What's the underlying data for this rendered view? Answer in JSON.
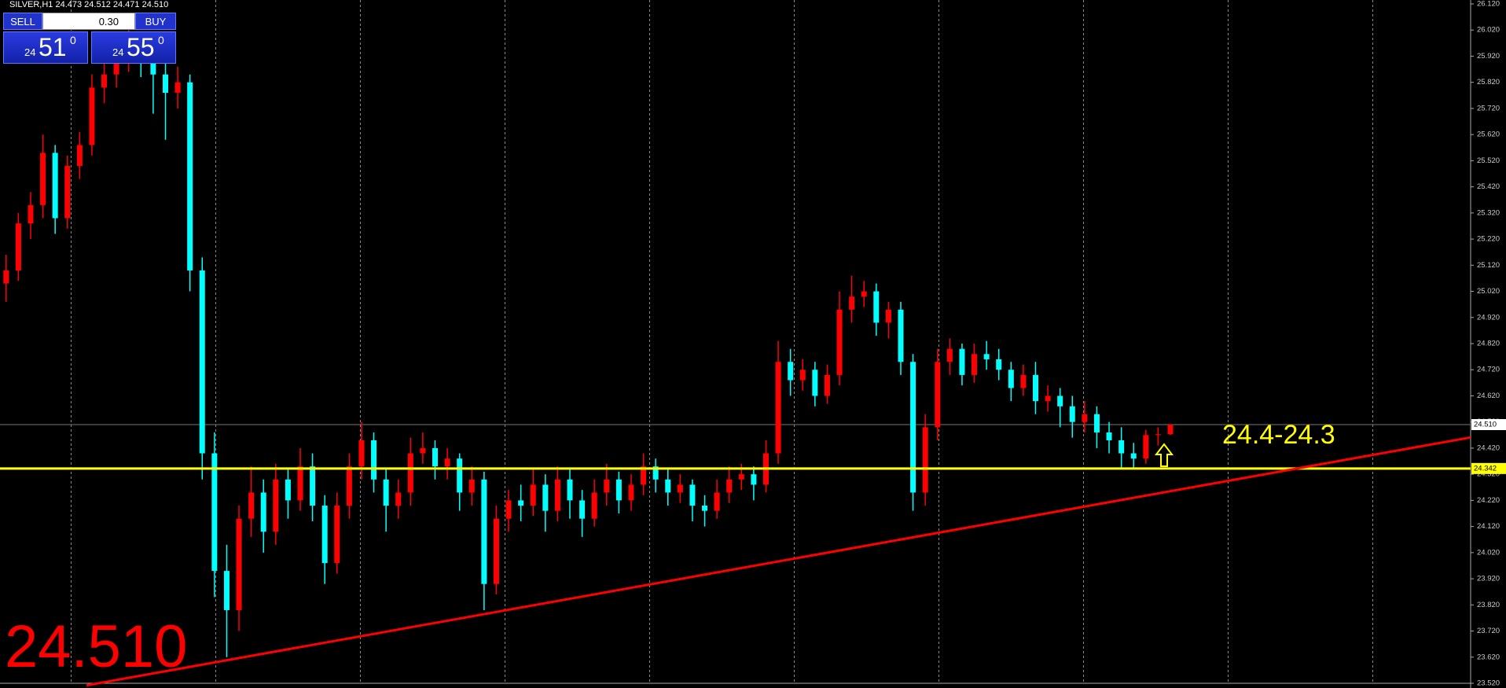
{
  "chart_data": {
    "type": "candlestick",
    "header": "SILVER,H1  24.473 24.512 24.471 24.510",
    "up_color": "#ff0000",
    "down_color": "#00ffff",
    "ylim": [
      23.52,
      26.12
    ],
    "yticks": [
      {
        "value": 26.12,
        "label": "26.120"
      },
      {
        "value": 26.02,
        "label": "26.020"
      },
      {
        "value": 25.92,
        "label": "25.920"
      },
      {
        "value": 25.82,
        "label": "25.820"
      },
      {
        "value": 25.72,
        "label": "25.720"
      },
      {
        "value": 25.62,
        "label": "25.620"
      },
      {
        "value": 25.52,
        "label": "25.520"
      },
      {
        "value": 25.42,
        "label": "25.420"
      },
      {
        "value": 25.32,
        "label": "25.320"
      },
      {
        "value": 25.22,
        "label": "25.220"
      },
      {
        "value": 25.12,
        "label": "25.120"
      },
      {
        "value": 25.02,
        "label": "25.020"
      },
      {
        "value": 24.92,
        "label": "24.920"
      },
      {
        "value": 24.82,
        "label": "24.820"
      },
      {
        "value": 24.72,
        "label": "24.720"
      },
      {
        "value": 24.62,
        "label": "24.620"
      },
      {
        "value": 24.52,
        "label": "24.520"
      },
      {
        "value": 24.42,
        "label": "24.420"
      },
      {
        "value": 24.32,
        "label": "24.320"
      },
      {
        "value": 24.22,
        "label": "24.220"
      },
      {
        "value": 24.12,
        "label": "24.120"
      },
      {
        "value": 24.02,
        "label": "24.020"
      },
      {
        "value": 23.92,
        "label": "23.920"
      },
      {
        "value": 23.82,
        "label": "23.820"
      },
      {
        "value": 23.72,
        "label": "23.720"
      },
      {
        "value": 23.62,
        "label": "23.620"
      },
      {
        "value": 23.52,
        "label": "23.520"
      }
    ],
    "ohlc": [
      [
        25.05,
        25.16,
        24.98,
        25.1
      ],
      [
        25.1,
        25.32,
        25.06,
        25.28
      ],
      [
        25.28,
        25.4,
        25.22,
        25.35
      ],
      [
        25.35,
        25.62,
        25.3,
        25.55
      ],
      [
        25.55,
        25.58,
        25.24,
        25.3
      ],
      [
        25.3,
        25.54,
        25.26,
        25.5
      ],
      [
        25.5,
        25.63,
        25.45,
        25.58
      ],
      [
        25.58,
        25.85,
        25.54,
        25.8
      ],
      [
        25.8,
        25.92,
        25.74,
        25.85
      ],
      [
        25.85,
        26.0,
        25.8,
        25.92
      ],
      [
        25.92,
        26.02,
        25.86,
        25.95
      ],
      [
        25.95,
        25.99,
        25.84,
        25.9
      ],
      [
        25.9,
        25.96,
        25.7,
        25.85
      ],
      [
        25.85,
        25.9,
        25.6,
        25.78
      ],
      [
        25.78,
        25.88,
        25.72,
        25.82
      ],
      [
        25.82,
        25.85,
        25.02,
        25.1
      ],
      [
        25.1,
        25.15,
        24.3,
        24.4
      ],
      [
        24.4,
        24.48,
        23.85,
        23.95
      ],
      [
        23.95,
        24.05,
        23.62,
        23.8
      ],
      [
        23.8,
        24.2,
        23.72,
        24.15
      ],
      [
        24.15,
        24.35,
        24.08,
        24.25
      ],
      [
        24.25,
        24.3,
        24.02,
        24.1
      ],
      [
        24.1,
        24.36,
        24.05,
        24.3
      ],
      [
        24.3,
        24.34,
        24.15,
        24.22
      ],
      [
        24.22,
        24.42,
        24.18,
        24.35
      ],
      [
        24.35,
        24.4,
        24.14,
        24.2
      ],
      [
        24.2,
        24.24,
        23.9,
        23.98
      ],
      [
        23.98,
        24.25,
        23.94,
        24.2
      ],
      [
        24.2,
        24.4,
        24.15,
        24.35
      ],
      [
        24.35,
        24.52,
        24.3,
        24.45
      ],
      [
        24.45,
        24.48,
        24.25,
        24.3
      ],
      [
        24.3,
        24.34,
        24.1,
        24.2
      ],
      [
        24.2,
        24.3,
        24.15,
        24.25
      ],
      [
        24.25,
        24.46,
        24.2,
        24.4
      ],
      [
        24.4,
        24.48,
        24.36,
        24.42
      ],
      [
        24.42,
        24.45,
        24.3,
        24.35
      ],
      [
        24.35,
        24.42,
        24.3,
        24.38
      ],
      [
        24.38,
        24.4,
        24.18,
        24.25
      ],
      [
        24.25,
        24.35,
        24.2,
        24.3
      ],
      [
        24.3,
        24.33,
        23.8,
        23.9
      ],
      [
        23.9,
        24.2,
        23.86,
        24.15
      ],
      [
        24.15,
        24.26,
        24.1,
        24.22
      ],
      [
        24.22,
        24.28,
        24.14,
        24.2
      ],
      [
        24.2,
        24.34,
        24.16,
        24.28
      ],
      [
        24.28,
        24.32,
        24.1,
        24.18
      ],
      [
        24.18,
        24.35,
        24.14,
        24.3
      ],
      [
        24.3,
        24.34,
        24.15,
        24.22
      ],
      [
        24.22,
        24.26,
        24.08,
        24.15
      ],
      [
        24.15,
        24.3,
        24.12,
        24.25
      ],
      [
        24.25,
        24.36,
        24.2,
        24.3
      ],
      [
        24.3,
        24.33,
        24.17,
        24.22
      ],
      [
        24.22,
        24.32,
        24.18,
        24.28
      ],
      [
        24.28,
        24.4,
        24.24,
        24.35
      ],
      [
        24.35,
        24.38,
        24.25,
        24.3
      ],
      [
        24.3,
        24.34,
        24.2,
        24.25
      ],
      [
        24.25,
        24.32,
        24.21,
        24.28
      ],
      [
        24.28,
        24.3,
        24.14,
        24.2
      ],
      [
        24.2,
        24.24,
        24.12,
        24.18
      ],
      [
        24.18,
        24.3,
        24.15,
        24.25
      ],
      [
        24.25,
        24.35,
        24.21,
        24.3
      ],
      [
        24.3,
        24.36,
        24.26,
        24.32
      ],
      [
        24.32,
        24.35,
        24.22,
        24.28
      ],
      [
        24.28,
        24.45,
        24.25,
        24.4
      ],
      [
        24.4,
        24.83,
        24.36,
        24.75
      ],
      [
        24.75,
        24.8,
        24.62,
        24.68
      ],
      [
        24.68,
        24.76,
        24.64,
        24.72
      ],
      [
        24.72,
        24.75,
        24.58,
        24.62
      ],
      [
        24.62,
        24.74,
        24.59,
        24.7
      ],
      [
        24.7,
        25.02,
        24.66,
        24.95
      ],
      [
        24.95,
        25.08,
        24.9,
        25.0
      ],
      [
        25.0,
        25.06,
        24.96,
        25.02
      ],
      [
        25.02,
        25.05,
        24.85,
        24.9
      ],
      [
        24.9,
        24.98,
        24.84,
        24.95
      ],
      [
        24.95,
        24.98,
        24.7,
        24.75
      ],
      [
        24.75,
        24.78,
        24.18,
        24.25
      ],
      [
        24.25,
        24.55,
        24.2,
        24.5
      ],
      [
        24.5,
        24.8,
        24.45,
        24.75
      ],
      [
        24.75,
        24.84,
        24.7,
        24.8
      ],
      [
        24.8,
        24.82,
        24.66,
        24.7
      ],
      [
        24.7,
        24.82,
        24.67,
        24.78
      ],
      [
        24.78,
        24.83,
        24.72,
        24.76
      ],
      [
        24.76,
        24.8,
        24.68,
        24.72
      ],
      [
        24.72,
        24.75,
        24.6,
        24.65
      ],
      [
        24.65,
        24.74,
        24.62,
        24.7
      ],
      [
        24.7,
        24.75,
        24.55,
        24.6
      ],
      [
        24.6,
        24.66,
        24.56,
        24.62
      ],
      [
        24.62,
        24.65,
        24.5,
        24.58
      ],
      [
        24.58,
        24.62,
        24.46,
        24.52
      ],
      [
        24.52,
        24.6,
        24.48,
        24.55
      ],
      [
        24.55,
        24.58,
        24.42,
        24.48
      ],
      [
        24.48,
        24.52,
        24.4,
        24.45
      ],
      [
        24.45,
        24.5,
        24.34,
        24.4
      ],
      [
        24.4,
        24.44,
        24.34,
        24.38
      ],
      [
        24.38,
        24.49,
        24.36,
        24.47
      ],
      [
        24.47,
        24.5,
        24.43,
        24.473
      ],
      [
        24.473,
        24.512,
        24.471,
        24.51
      ]
    ],
    "current_price": {
      "value": 24.51,
      "label": "24.510"
    },
    "level": {
      "value": 24.342,
      "label": "24.342",
      "color": "#ffff00"
    },
    "trendline": {
      "x": [
        6.56,
        119.5
      ],
      "y": [
        23.512,
        24.461
      ],
      "color": "#ff0000"
    },
    "annotation": "24.4-24.3",
    "big_price": "24.510",
    "trade_panel": {
      "sell": "SELL",
      "lot": "0.30",
      "buy": "BUY",
      "bid": {
        "prefix": "24",
        "main": "51",
        "sup": "0"
      },
      "ask": {
        "prefix": "24",
        "main": "55",
        "sup": "0"
      }
    }
  }
}
